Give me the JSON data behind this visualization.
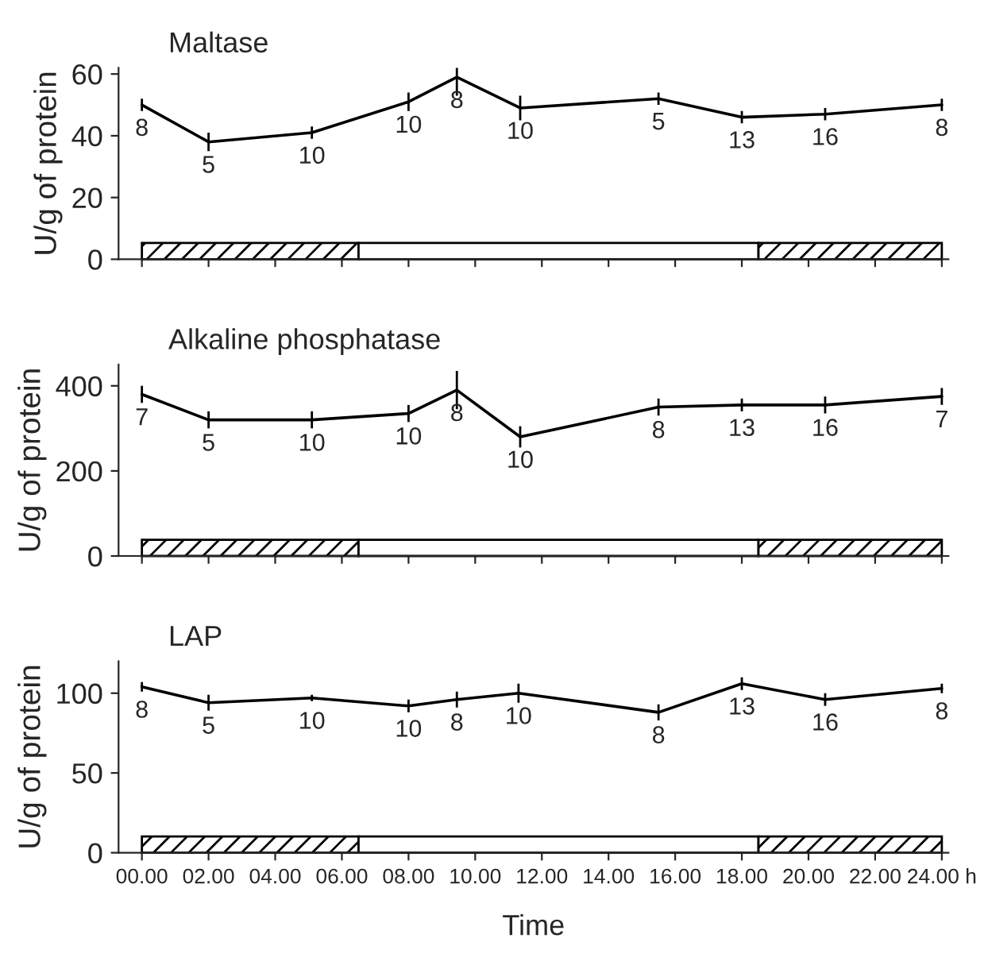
{
  "chart_data": [
    {
      "type": "line",
      "title": "Maltase",
      "ylabel": "U/g of protein",
      "x": [
        0,
        2.0,
        5.1,
        8.0,
        9.45,
        11.35,
        15.5,
        18.0,
        20.5,
        24
      ],
      "series": [
        {
          "color": "#000000",
          "values": [
            50,
            38,
            41,
            51,
            59,
            49,
            52,
            46,
            47,
            50
          ],
          "errors": [
            2,
            3,
            2,
            3,
            6,
            4,
            2,
            2,
            2,
            2
          ]
        }
      ],
      "xlim": [
        -0.7,
        24.2
      ],
      "xticks": [
        {
          "value": 0,
          "label": null
        },
        {
          "value": 2,
          "label": null
        },
        {
          "value": 4,
          "label": null
        },
        {
          "value": 6,
          "label": null
        },
        {
          "value": 8,
          "label": null
        },
        {
          "value": 10,
          "label": null
        },
        {
          "value": 12,
          "label": null
        },
        {
          "value": 14,
          "label": null
        },
        {
          "value": 16,
          "label": null
        },
        {
          "value": 18,
          "label": null
        },
        {
          "value": 20,
          "label": null
        },
        {
          "value": 22,
          "label": null
        },
        {
          "value": 24,
          "label": null
        }
      ],
      "ylim": [
        0,
        62
      ],
      "yticks": [
        0,
        20,
        40,
        60
      ],
      "tick_labels": "y",
      "grid": false,
      "marker": "none",
      "line_style": "solid",
      "bands": [
        {
          "axis": "x",
          "from": 0,
          "to": 6.5,
          "color": "#000000"
        },
        {
          "axis": "x",
          "from": 6.5,
          "to": 18.5,
          "color": "#ffffff"
        },
        {
          "axis": "x",
          "from": 18.5,
          "to": 24,
          "color": "#000000"
        }
      ],
      "annotations": [
        {
          "text": "8",
          "x": 0,
          "y": 50
        },
        {
          "text": "5",
          "x": 2.0,
          "y": 38
        },
        {
          "text": "10",
          "x": 5.1,
          "y": 41
        },
        {
          "text": "10",
          "x": 8.0,
          "y": 51
        },
        {
          "text": "8",
          "x": 9.45,
          "y": 59
        },
        {
          "text": "10",
          "x": 11.35,
          "y": 49
        },
        {
          "text": "5",
          "x": 15.5,
          "y": 52
        },
        {
          "text": "13",
          "x": 18.0,
          "y": 46
        },
        {
          "text": "16",
          "x": 20.5,
          "y": 47
        },
        {
          "text": "8",
          "x": 24,
          "y": 50
        }
      ]
    },
    {
      "type": "line",
      "title": "Alkaline phosphatase",
      "ylabel": "U/g of protein",
      "x": [
        0,
        2.0,
        5.1,
        8.0,
        9.45,
        11.35,
        15.5,
        18.0,
        20.5,
        24
      ],
      "series": [
        {
          "color": "#000000",
          "values": [
            380,
            320,
            320,
            335,
            390,
            280,
            350,
            355,
            355,
            375
          ],
          "errors": [
            20,
            20,
            20,
            20,
            45,
            25,
            20,
            15,
            20,
            20
          ]
        }
      ],
      "xlim": [
        -0.7,
        24.2
      ],
      "xticks": [
        {
          "value": 0,
          "label": null
        },
        {
          "value": 2,
          "label": null
        },
        {
          "value": 4,
          "label": null
        },
        {
          "value": 6,
          "label": null
        },
        {
          "value": 8,
          "label": null
        },
        {
          "value": 10,
          "label": null
        },
        {
          "value": 12,
          "label": null
        },
        {
          "value": 14,
          "label": null
        },
        {
          "value": 16,
          "label": null
        },
        {
          "value": 18,
          "label": null
        },
        {
          "value": 20,
          "label": null
        },
        {
          "value": 22,
          "label": null
        },
        {
          "value": 24,
          "label": null
        }
      ],
      "ylim": [
        0,
        450
      ],
      "yticks": [
        0,
        200,
        400
      ],
      "tick_labels": "y",
      "grid": false,
      "marker": "none",
      "line_style": "solid",
      "bands": [
        {
          "axis": "x",
          "from": 0,
          "to": 6.5,
          "color": "#000000"
        },
        {
          "axis": "x",
          "from": 6.5,
          "to": 18.5,
          "color": "#ffffff"
        },
        {
          "axis": "x",
          "from": 18.5,
          "to": 24,
          "color": "#000000"
        }
      ],
      "annotations": [
        {
          "text": "7",
          "x": 0,
          "y": 380
        },
        {
          "text": "5",
          "x": 2.0,
          "y": 320
        },
        {
          "text": "10",
          "x": 5.1,
          "y": 320
        },
        {
          "text": "10",
          "x": 8.0,
          "y": 335
        },
        {
          "text": "8",
          "x": 9.45,
          "y": 390
        },
        {
          "text": "10",
          "x": 11.35,
          "y": 280
        },
        {
          "text": "8",
          "x": 15.5,
          "y": 350
        },
        {
          "text": "13",
          "x": 18.0,
          "y": 355
        },
        {
          "text": "16",
          "x": 20.5,
          "y": 355
        },
        {
          "text": "7",
          "x": 24,
          "y": 375
        }
      ]
    },
    {
      "type": "line",
      "title": "LAP",
      "ylabel": "U/g of protein",
      "xlabel": "Time",
      "x": [
        0,
        2.0,
        5.1,
        8.0,
        9.45,
        11.3,
        15.5,
        18.0,
        20.5,
        24
      ],
      "series": [
        {
          "color": "#000000",
          "values": [
            104,
            94,
            97,
            92,
            96,
            100,
            88,
            106,
            96,
            103
          ],
          "errors": [
            3,
            5,
            2,
            4,
            5,
            6,
            5,
            4,
            4,
            3
          ]
        }
      ],
      "xlim": [
        -0.7,
        24.2
      ],
      "xticks": [
        {
          "value": 0,
          "label": "00.00"
        },
        {
          "value": 2,
          "label": "02.00"
        },
        {
          "value": 4,
          "label": "04.00"
        },
        {
          "value": 6,
          "label": "06.00"
        },
        {
          "value": 8,
          "label": "08.00"
        },
        {
          "value": 10,
          "label": "10.00"
        },
        {
          "value": 12,
          "label": "12.00"
        },
        {
          "value": 14,
          "label": "14.00"
        },
        {
          "value": 16,
          "label": "16.00"
        },
        {
          "value": 18,
          "label": "18.00"
        },
        {
          "value": 20,
          "label": "20.00"
        },
        {
          "value": 22,
          "label": "22.00"
        },
        {
          "value": 24,
          "label": "24.00 h"
        }
      ],
      "ylim": [
        0,
        120
      ],
      "yticks": [
        0,
        50,
        100
      ],
      "grid": false,
      "marker": "none",
      "line_style": "solid",
      "bands": [
        {
          "axis": "x",
          "from": 0,
          "to": 6.5,
          "color": "#000000"
        },
        {
          "axis": "x",
          "from": 6.5,
          "to": 18.5,
          "color": "#ffffff"
        },
        {
          "axis": "x",
          "from": 18.5,
          "to": 24,
          "color": "#000000"
        }
      ],
      "annotations": [
        {
          "text": "8",
          "x": 0,
          "y": 104
        },
        {
          "text": "5",
          "x": 2.0,
          "y": 94
        },
        {
          "text": "10",
          "x": 5.1,
          "y": 97
        },
        {
          "text": "10",
          "x": 8.0,
          "y": 92
        },
        {
          "text": "8",
          "x": 9.45,
          "y": 96
        },
        {
          "text": "10",
          "x": 11.3,
          "y": 100
        },
        {
          "text": "8",
          "x": 15.5,
          "y": 88
        },
        {
          "text": "13",
          "x": 18.0,
          "y": 106
        },
        {
          "text": "16",
          "x": 20.5,
          "y": 96
        },
        {
          "text": "8",
          "x": 24,
          "y": 103
        }
      ]
    }
  ]
}
